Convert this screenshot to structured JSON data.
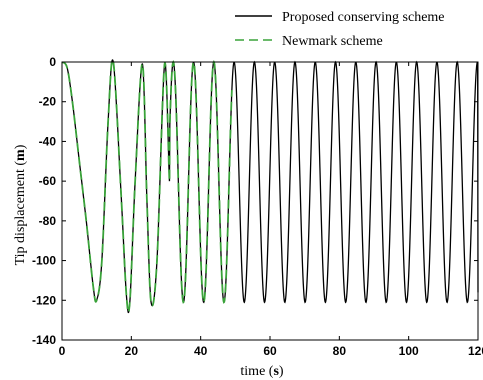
{
  "chart_data": {
    "type": "line",
    "xlabel": "time",
    "xlabel_unit": "s",
    "ylabel": "Tip displacement",
    "ylabel_unit": "m",
    "xlim": [
      0,
      120
    ],
    "ylim": [
      -140,
      0
    ],
    "xticks": [
      0,
      20,
      40,
      60,
      80,
      100,
      120
    ],
    "yticks": [
      0,
      -20,
      -40,
      -60,
      -80,
      -100,
      -120,
      -140
    ],
    "grid": false,
    "legend_position": "top-right",
    "series": [
      {
        "name": "Proposed conserving scheme",
        "color": "#000000",
        "line_style": "solid",
        "x_range": [
          0,
          120
        ],
        "x": [
          0,
          1.5,
          3,
          5,
          7,
          9,
          10,
          11.5,
          13.3,
          14.8,
          17,
          18.6,
          19.6,
          21.1,
          23.2,
          24.5,
          25.7,
          27.4,
          29.6,
          31
        ],
        "y": [
          0,
          -3,
          -20,
          -50,
          -80,
          -113,
          -120,
          -100,
          -30,
          0,
          -65,
          -118,
          -120,
          -60,
          -1,
          -70,
          -121,
          -100,
          -1,
          -60
        ],
        "oscillation_after_x": 25,
        "oscillation_period": 5.85,
        "oscillation_max": 0,
        "oscillation_min": -121,
        "end_value": -116
      },
      {
        "name": "Newmark scheme",
        "color": "#3aa33a",
        "line_style": "dashed",
        "x_range": [
          0,
          49
        ],
        "x": [
          0,
          1.5,
          3,
          5,
          7,
          9,
          10,
          11.5,
          13.3,
          14.8,
          17,
          18.6,
          19.6,
          21.1,
          23.2,
          24.5,
          25.7,
          27.4,
          29.6,
          31
        ],
        "y": [
          0,
          -3,
          -20,
          -50,
          -80,
          -113,
          -120,
          -100,
          -30,
          0,
          -65,
          -118,
          -120,
          -60,
          -1,
          -70,
          -121,
          -100,
          -1,
          -60
        ],
        "oscillation_after_x": 25,
        "oscillation_period": 5.85,
        "oscillation_max": 0,
        "oscillation_min": -121
      }
    ]
  }
}
